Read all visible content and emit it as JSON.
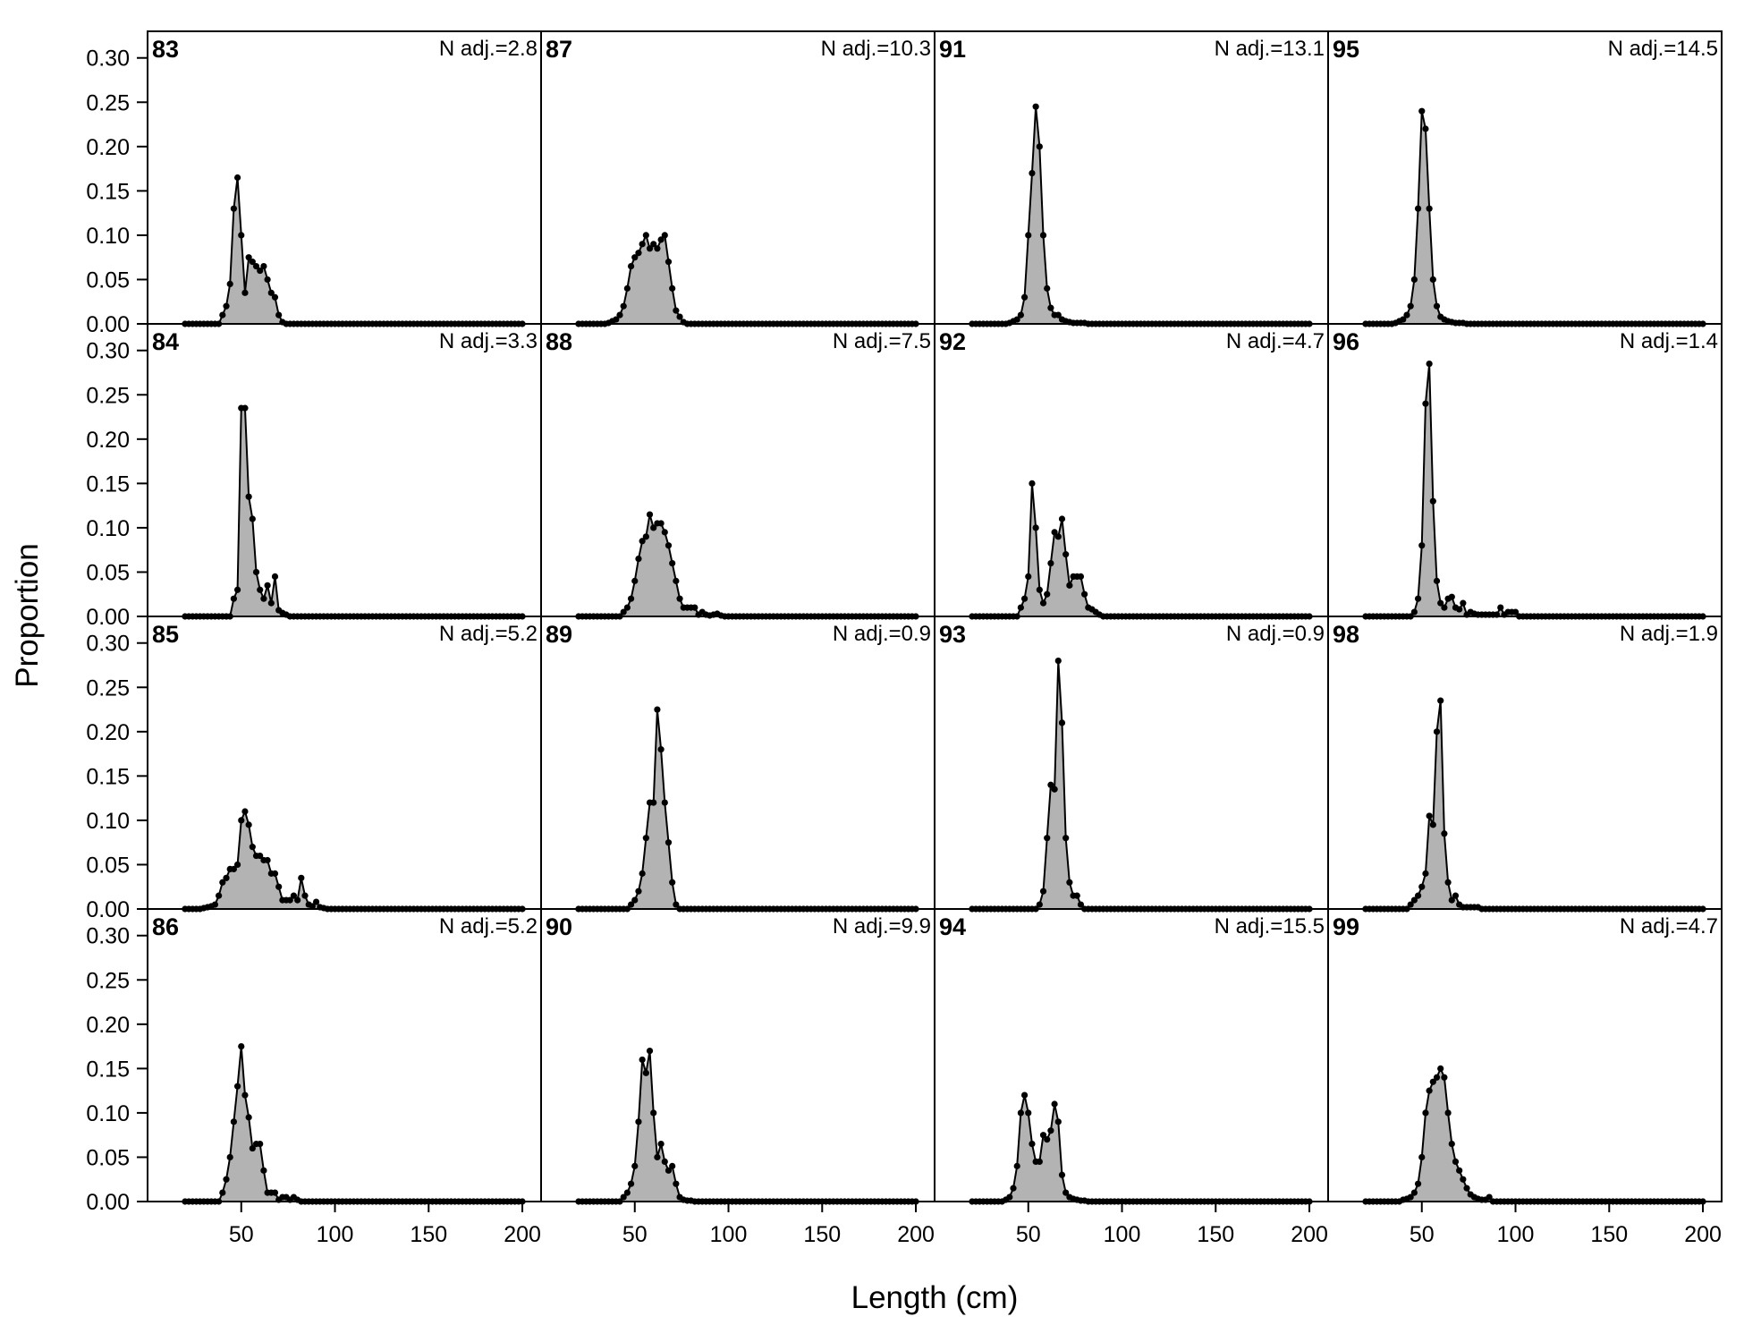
{
  "colors": {
    "fill": "#b3b3b3",
    "line": "#000000",
    "point": "#000000",
    "background": "#ffffff"
  },
  "chart_data": {
    "type": "area",
    "xlabel": "Length (cm)",
    "ylabel": "Proportion",
    "xlim": [
      0,
      210
    ],
    "ylim": [
      0,
      0.33
    ],
    "x_ticks": [
      50,
      100,
      150,
      200
    ],
    "y_ticks": [
      0.0,
      0.05,
      0.1,
      0.15,
      0.2,
      0.25,
      0.3
    ],
    "y_tick_labels": [
      "0.00",
      "0.05",
      "0.10",
      "0.15",
      "0.20",
      "0.25",
      "0.30"
    ],
    "bin_start": 20,
    "bin_end": 200,
    "bin_width": 2,
    "grid": {
      "rows": 4,
      "cols": 4
    },
    "grid_lines": false,
    "panels": [
      {
        "year": "83",
        "n_adj": "N adj.=2.8",
        "x": [
          40,
          42,
          44,
          46,
          48,
          50,
          52,
          54,
          56,
          58,
          60,
          62,
          64,
          66,
          68,
          70,
          72
        ],
        "values": [
          0.01,
          0.02,
          0.045,
          0.13,
          0.165,
          0.1,
          0.035,
          0.075,
          0.07,
          0.065,
          0.06,
          0.065,
          0.05,
          0.035,
          0.03,
          0.01,
          0.002
        ]
      },
      {
        "year": "84",
        "n_adj": "N adj.=3.3",
        "x": [
          46,
          48,
          50,
          52,
          54,
          56,
          58,
          60,
          62,
          64,
          66,
          68,
          70,
          72,
          74
        ],
        "values": [
          0.02,
          0.03,
          0.235,
          0.235,
          0.135,
          0.11,
          0.05,
          0.03,
          0.02,
          0.035,
          0.015,
          0.045,
          0.007,
          0.004,
          0.002
        ]
      },
      {
        "year": "85",
        "n_adj": "N adj.=5.2",
        "x": [
          30,
          32,
          34,
          36,
          38,
          40,
          42,
          44,
          46,
          48,
          50,
          52,
          54,
          56,
          58,
          60,
          62,
          64,
          66,
          68,
          70,
          72,
          74,
          76,
          78,
          80,
          82,
          84,
          86,
          88,
          90,
          92,
          94
        ],
        "values": [
          0.001,
          0.002,
          0.003,
          0.005,
          0.015,
          0.03,
          0.035,
          0.045,
          0.045,
          0.05,
          0.1,
          0.11,
          0.095,
          0.07,
          0.06,
          0.06,
          0.055,
          0.055,
          0.04,
          0.04,
          0.025,
          0.01,
          0.01,
          0.01,
          0.015,
          0.01,
          0.035,
          0.015,
          0.005,
          0.003,
          0.008,
          0.002,
          0.001
        ]
      },
      {
        "year": "86",
        "n_adj": "N adj.=5.2",
        "x": [
          40,
          42,
          44,
          46,
          48,
          50,
          52,
          54,
          56,
          58,
          60,
          62,
          64,
          66,
          68,
          70,
          72,
          74,
          76,
          78,
          80
        ],
        "values": [
          0.01,
          0.025,
          0.05,
          0.09,
          0.13,
          0.175,
          0.12,
          0.095,
          0.06,
          0.065,
          0.065,
          0.035,
          0.01,
          0.01,
          0.01,
          0.002,
          0.005,
          0.005,
          0.002,
          0.005,
          0.002
        ]
      },
      {
        "year": "87",
        "n_adj": "N adj.=10.3",
        "x": [
          36,
          38,
          40,
          42,
          44,
          46,
          48,
          50,
          52,
          54,
          56,
          58,
          60,
          62,
          64,
          66,
          68,
          70,
          72,
          74,
          76
        ],
        "values": [
          0.001,
          0.003,
          0.005,
          0.01,
          0.02,
          0.04,
          0.065,
          0.075,
          0.08,
          0.09,
          0.1,
          0.085,
          0.09,
          0.085,
          0.095,
          0.1,
          0.07,
          0.04,
          0.015,
          0.008,
          0.002
        ]
      },
      {
        "year": "88",
        "n_adj": "N adj.=7.5",
        "x": [
          44,
          46,
          48,
          50,
          52,
          54,
          56,
          58,
          60,
          62,
          64,
          66,
          68,
          70,
          72,
          74,
          76,
          78,
          80,
          82,
          84,
          86,
          88,
          90,
          92,
          94,
          96
        ],
        "values": [
          0.005,
          0.01,
          0.02,
          0.04,
          0.065,
          0.085,
          0.09,
          0.115,
          0.1,
          0.105,
          0.105,
          0.095,
          0.08,
          0.06,
          0.04,
          0.02,
          0.01,
          0.01,
          0.01,
          0.01,
          0.002,
          0.005,
          0.002,
          0.001,
          0.002,
          0.003,
          0.001
        ]
      },
      {
        "year": "89",
        "n_adj": "N adj.=0.9",
        "x": [
          48,
          50,
          52,
          54,
          56,
          58,
          60,
          62,
          64,
          66,
          68,
          70,
          72
        ],
        "values": [
          0.005,
          0.01,
          0.02,
          0.04,
          0.08,
          0.12,
          0.12,
          0.225,
          0.18,
          0.12,
          0.075,
          0.03,
          0.005
        ]
      },
      {
        "year": "90",
        "n_adj": "N adj.=9.9",
        "x": [
          44,
          46,
          48,
          50,
          52,
          54,
          56,
          58,
          60,
          62,
          64,
          66,
          68,
          70,
          72,
          74,
          76,
          78,
          80
        ],
        "values": [
          0.005,
          0.01,
          0.02,
          0.04,
          0.09,
          0.16,
          0.145,
          0.17,
          0.1,
          0.05,
          0.065,
          0.045,
          0.035,
          0.04,
          0.02,
          0.005,
          0.002,
          0.001,
          0.001
        ]
      },
      {
        "year": "91",
        "n_adj": "N adj.=13.1",
        "x": [
          40,
          42,
          44,
          46,
          48,
          50,
          52,
          54,
          56,
          58,
          60,
          62,
          64,
          66,
          68,
          70,
          72,
          74,
          76,
          78,
          80
        ],
        "values": [
          0.001,
          0.003,
          0.005,
          0.01,
          0.03,
          0.1,
          0.17,
          0.245,
          0.2,
          0.1,
          0.04,
          0.018,
          0.01,
          0.01,
          0.005,
          0.003,
          0.002,
          0.001,
          0.001,
          0.001,
          0.001
        ]
      },
      {
        "year": "92",
        "n_adj": "N adj.=4.7",
        "x": [
          46,
          48,
          50,
          52,
          54,
          56,
          58,
          60,
          62,
          64,
          66,
          68,
          70,
          72,
          74,
          76,
          78,
          80,
          82,
          84,
          86,
          88
        ],
        "values": [
          0.01,
          0.02,
          0.045,
          0.15,
          0.1,
          0.03,
          0.015,
          0.025,
          0.06,
          0.095,
          0.09,
          0.11,
          0.07,
          0.035,
          0.045,
          0.045,
          0.045,
          0.025,
          0.01,
          0.008,
          0.005,
          0.002
        ]
      },
      {
        "year": "93",
        "n_adj": "N adj.=0.9",
        "x": [
          56,
          58,
          60,
          62,
          64,
          66,
          68,
          70,
          72,
          74,
          76,
          78
        ],
        "values": [
          0.005,
          0.02,
          0.08,
          0.14,
          0.135,
          0.28,
          0.21,
          0.08,
          0.03,
          0.015,
          0.015,
          0.005
        ]
      },
      {
        "year": "94",
        "n_adj": "N adj.=15.5",
        "x": [
          38,
          40,
          42,
          44,
          46,
          48,
          50,
          52,
          54,
          56,
          58,
          60,
          62,
          64,
          66,
          68,
          70,
          72,
          74,
          76,
          78,
          80
        ],
        "values": [
          0.002,
          0.005,
          0.015,
          0.04,
          0.1,
          0.12,
          0.1,
          0.065,
          0.045,
          0.045,
          0.075,
          0.07,
          0.08,
          0.11,
          0.09,
          0.03,
          0.01,
          0.005,
          0.003,
          0.002,
          0.001,
          0.001
        ]
      },
      {
        "year": "95",
        "n_adj": "N adj.=14.5",
        "x": [
          36,
          38,
          40,
          42,
          44,
          46,
          48,
          50,
          52,
          54,
          56,
          58,
          60,
          62,
          64,
          66,
          68,
          70,
          72
        ],
        "values": [
          0.001,
          0.003,
          0.005,
          0.01,
          0.02,
          0.05,
          0.13,
          0.24,
          0.22,
          0.13,
          0.05,
          0.02,
          0.008,
          0.005,
          0.003,
          0.002,
          0.001,
          0.001,
          0.001
        ]
      },
      {
        "year": "96",
        "n_adj": "N adj.=1.4",
        "x": [
          46,
          48,
          50,
          52,
          54,
          56,
          58,
          60,
          62,
          64,
          66,
          68,
          70,
          72,
          74,
          76,
          78,
          80,
          82,
          84,
          86,
          88,
          90,
          92,
          94,
          96,
          98,
          100
        ],
        "values": [
          0.005,
          0.02,
          0.08,
          0.24,
          0.285,
          0.13,
          0.04,
          0.015,
          0.01,
          0.02,
          0.022,
          0.01,
          0.008,
          0.015,
          0.002,
          0.005,
          0.003,
          0.002,
          0.002,
          0.002,
          0.002,
          0.002,
          0.002,
          0.01,
          0.002,
          0.005,
          0.005,
          0.005
        ]
      },
      {
        "year": "98",
        "n_adj": "N adj.=1.9",
        "x": [
          44,
          46,
          48,
          50,
          52,
          54,
          56,
          58,
          60,
          62,
          64,
          66,
          68,
          70,
          72,
          74,
          76,
          78,
          80
        ],
        "values": [
          0.005,
          0.01,
          0.015,
          0.025,
          0.04,
          0.105,
          0.095,
          0.2,
          0.235,
          0.085,
          0.03,
          0.01,
          0.015,
          0.005,
          0.002,
          0.002,
          0.002,
          0.002,
          0.002
        ]
      },
      {
        "year": "99",
        "n_adj": "N adj.=4.7",
        "x": [
          40,
          42,
          44,
          46,
          48,
          50,
          52,
          54,
          56,
          58,
          60,
          62,
          64,
          66,
          68,
          70,
          72,
          74,
          76,
          78,
          80,
          82,
          84,
          86
        ],
        "values": [
          0.002,
          0.003,
          0.005,
          0.01,
          0.02,
          0.05,
          0.1,
          0.125,
          0.135,
          0.14,
          0.15,
          0.14,
          0.1,
          0.065,
          0.045,
          0.035,
          0.025,
          0.015,
          0.008,
          0.005,
          0.003,
          0.002,
          0.002,
          0.005
        ]
      }
    ]
  }
}
